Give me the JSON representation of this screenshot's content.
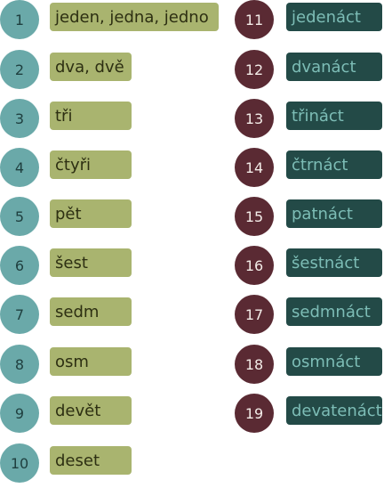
{
  "colors": {
    "left_circle": "#6aa9a9",
    "left_label": "#a9b46f",
    "right_circle": "#5a2a33",
    "right_label": "#234a47",
    "right_text": "#7dbdb6"
  },
  "left": [
    {
      "num": "1",
      "word": "jeden, jedna, jedno"
    },
    {
      "num": "2",
      "word": "dva, dvě"
    },
    {
      "num": "3",
      "word": "tři"
    },
    {
      "num": "4",
      "word": "čtyři"
    },
    {
      "num": "5",
      "word": "pět"
    },
    {
      "num": "6",
      "word": "šest"
    },
    {
      "num": "7",
      "word": "sedm"
    },
    {
      "num": "8",
      "word": "osm"
    },
    {
      "num": "9",
      "word": "devět"
    },
    {
      "num": "10",
      "word": "deset"
    }
  ],
  "right": [
    {
      "num": "11",
      "word": "jedenáct"
    },
    {
      "num": "12",
      "word": "dvanáct"
    },
    {
      "num": "13",
      "word": "třináct"
    },
    {
      "num": "14",
      "word": "čtrnáct"
    },
    {
      "num": "15",
      "word": "patnáct"
    },
    {
      "num": "16",
      "word": "šestnáct"
    },
    {
      "num": "17",
      "word": "sedmnáct"
    },
    {
      "num": "18",
      "word": "osmnáct"
    },
    {
      "num": "19",
      "word": "devatenáct"
    }
  ]
}
